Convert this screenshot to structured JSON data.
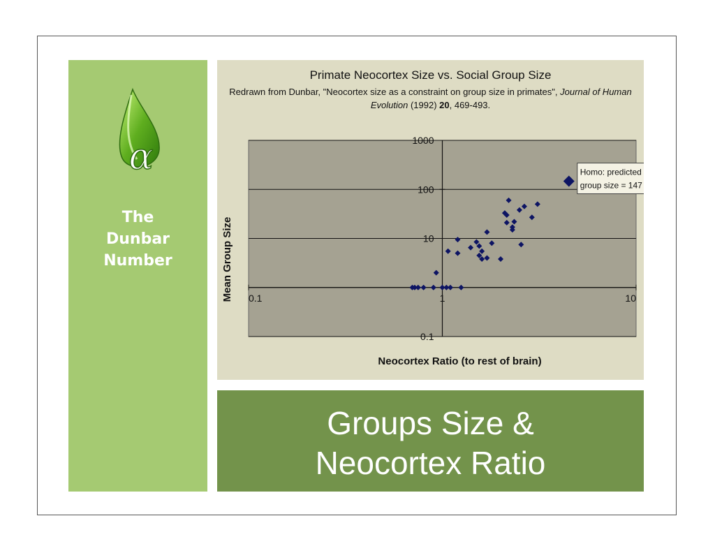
{
  "sidebar": {
    "title_lines": [
      "The",
      "Dunbar",
      "Number"
    ],
    "logo_glyph": "α",
    "color": "#a5ca72"
  },
  "chart_data": {
    "type": "scatter",
    "title": "Primate Neocortex Size vs. Social Group Size",
    "subtitle": {
      "pre": "Redrawn from Dunbar, \"Neocortex size as a constraint on group size in primates\", ",
      "journal": "Journal of Human Evolution",
      "year": " (1992) ",
      "volume": "20",
      "pages": ", 469-493."
    },
    "xlabel": "Neocortex Ratio (to rest of brain)",
    "ylabel": "Mean Group Size",
    "x_scale": "log",
    "y_scale": "log",
    "xlim": [
      0.1,
      10
    ],
    "ylim": [
      0.1,
      1000
    ],
    "x_ticks": [
      "0.1",
      "1",
      "10"
    ],
    "y_ticks": [
      "1000",
      "100",
      "10",
      "0.1"
    ],
    "grid": true,
    "series": [
      {
        "color": "#0d1463",
        "points": [
          [
            0.7,
            1
          ],
          [
            0.72,
            1
          ],
          [
            0.75,
            1
          ],
          [
            0.8,
            1
          ],
          [
            0.9,
            1
          ],
          [
            0.93,
            2
          ],
          [
            1.0,
            1
          ],
          [
            1.05,
            1
          ],
          [
            1.07,
            5.5
          ],
          [
            1.1,
            1
          ],
          [
            1.2,
            9.5
          ],
          [
            1.2,
            5
          ],
          [
            1.25,
            1
          ],
          [
            1.4,
            6.5
          ],
          [
            1.5,
            8.5
          ],
          [
            1.55,
            7
          ],
          [
            1.55,
            4.5
          ],
          [
            1.6,
            5.5
          ],
          [
            1.6,
            3.8
          ],
          [
            1.7,
            13.5
          ],
          [
            1.7,
            4
          ],
          [
            1.8,
            8
          ],
          [
            2.0,
            3.8
          ],
          [
            2.1,
            33
          ],
          [
            2.15,
            30
          ],
          [
            2.15,
            21
          ],
          [
            2.2,
            60
          ],
          [
            2.3,
            17
          ],
          [
            2.3,
            15
          ],
          [
            2.35,
            22
          ],
          [
            2.5,
            38
          ],
          [
            2.55,
            7.5
          ],
          [
            2.65,
            45
          ],
          [
            2.9,
            27
          ],
          [
            3.1,
            50
          ]
        ]
      },
      {
        "color": "#0d1463",
        "points": [
          [
            4.5,
            147
          ]
        ]
      }
    ],
    "annotation": {
      "lines": [
        "Homo:  predicted",
        "group size = 147"
      ]
    }
  },
  "caption": {
    "lines": [
      "Groups Size &",
      "Neocortex Ratio"
    ],
    "color": "#73934b"
  }
}
